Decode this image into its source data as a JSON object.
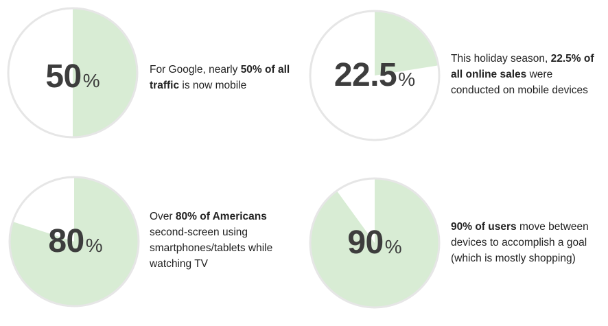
{
  "chart_data": [
    {
      "type": "pie",
      "value": 50,
      "number_text": "50",
      "unit": "%",
      "desc_before": "For Google, nearly ",
      "desc_bold": "50% of all traffic",
      "desc_after": " is now mobile",
      "fill_color": "#d8ecd4",
      "ring_color": "#e6e6e6"
    },
    {
      "type": "pie",
      "value": 22.5,
      "number_text": "22.5",
      "unit": "%",
      "desc_before": "This holiday season, ",
      "desc_bold": "22.5% of all online sales",
      "desc_after": " were conducted on mobile devices",
      "fill_color": "#d8ecd4",
      "ring_color": "#e6e6e6"
    },
    {
      "type": "pie",
      "value": 80,
      "number_text": "80",
      "unit": "%",
      "desc_before": "Over ",
      "desc_bold": "80% of Americans",
      "desc_after": " second-screen using smartphones/tablets while watching TV",
      "fill_color": "#d8ecd4",
      "ring_color": "#e6e6e6"
    },
    {
      "type": "pie",
      "value": 90,
      "number_text": "90",
      "unit": "%",
      "desc_before": "",
      "desc_bold": "90% of users",
      "desc_after": " move between devices to accomplish a goal (which is mostly shopping)",
      "fill_color": "#d8ecd4",
      "ring_color": "#e6e6e6"
    }
  ]
}
